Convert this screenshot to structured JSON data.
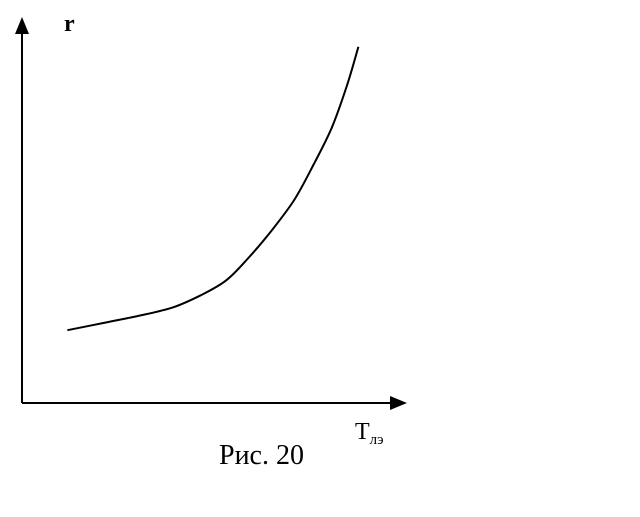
{
  "figure": {
    "caption": "Рис. 20"
  },
  "chart_data": {
    "type": "line",
    "title": "",
    "ylabel": "r",
    "xlabel_main": "T",
    "xlabel_sub": "лэ",
    "axis_ticks": "none",
    "grid": false,
    "legend": "none",
    "line_color": "#000000",
    "series": [
      {
        "x": [
          0.12,
          0.22,
          0.32,
          0.4,
          0.47,
          0.54,
          0.6,
          0.66,
          0.72,
          0.77,
          0.82,
          0.86,
          0.89
        ],
        "y": [
          0.19,
          0.21,
          0.23,
          0.25,
          0.28,
          0.32,
          0.38,
          0.45,
          0.53,
          0.62,
          0.72,
          0.83,
          0.93
        ]
      }
    ],
    "xlim": [
      0,
      1
    ],
    "ylim": [
      0,
      1
    ]
  }
}
